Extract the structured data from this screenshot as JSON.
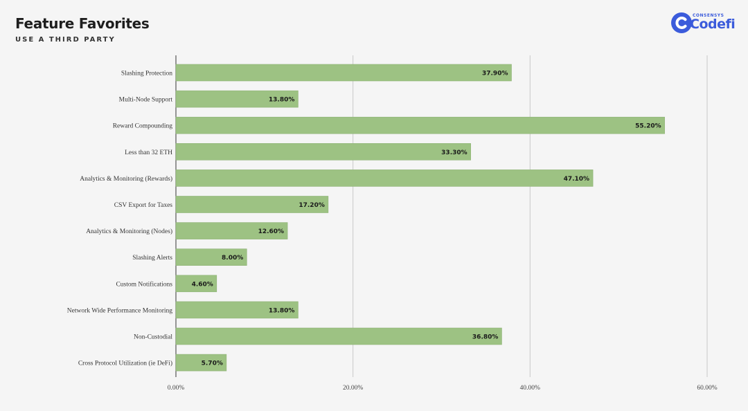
{
  "header": {
    "title": "Feature Favorites",
    "subtitle": "USE A THIRD PARTY"
  },
  "logo": {
    "small_text": "CONSENSYS",
    "main_text": "Codefi",
    "color": "#3b5bdb"
  },
  "chart_data": {
    "type": "bar",
    "orientation": "horizontal",
    "categories": [
      "Slashing Protection",
      "Multi-Node Support",
      "Reward Compounding",
      "Less than 32 ETH",
      "Analytics & Monitoring (Rewards)",
      "CSV Export for Taxes",
      "Analytics & Monitoring (Nodes)",
      "Slashing Alerts",
      "Custom Notifications",
      "Network Wide Performance Monitoring",
      "Non-Custodial",
      "Cross Protocol Utilization (ie DeFi)"
    ],
    "values": [
      37.9,
      13.8,
      55.2,
      33.3,
      47.1,
      17.2,
      12.6,
      8.0,
      4.6,
      13.8,
      36.8,
      5.7
    ],
    "data_labels": [
      "37.90%",
      "13.80%",
      "55.20%",
      "33.30%",
      "47.10%",
      "17.20%",
      "12.60%",
      "8.00%",
      "4.60%",
      "13.80%",
      "36.80%",
      "5.70%"
    ],
    "xlim": [
      0,
      60
    ],
    "x_ticks": [
      0,
      20,
      40,
      60
    ],
    "x_tick_labels": [
      "0.00%",
      "20.00%",
      "40.00%",
      "60.00%"
    ],
    "grid": "vertical",
    "bar_color": "#9dc283",
    "bar_border_color": "#8db274"
  }
}
